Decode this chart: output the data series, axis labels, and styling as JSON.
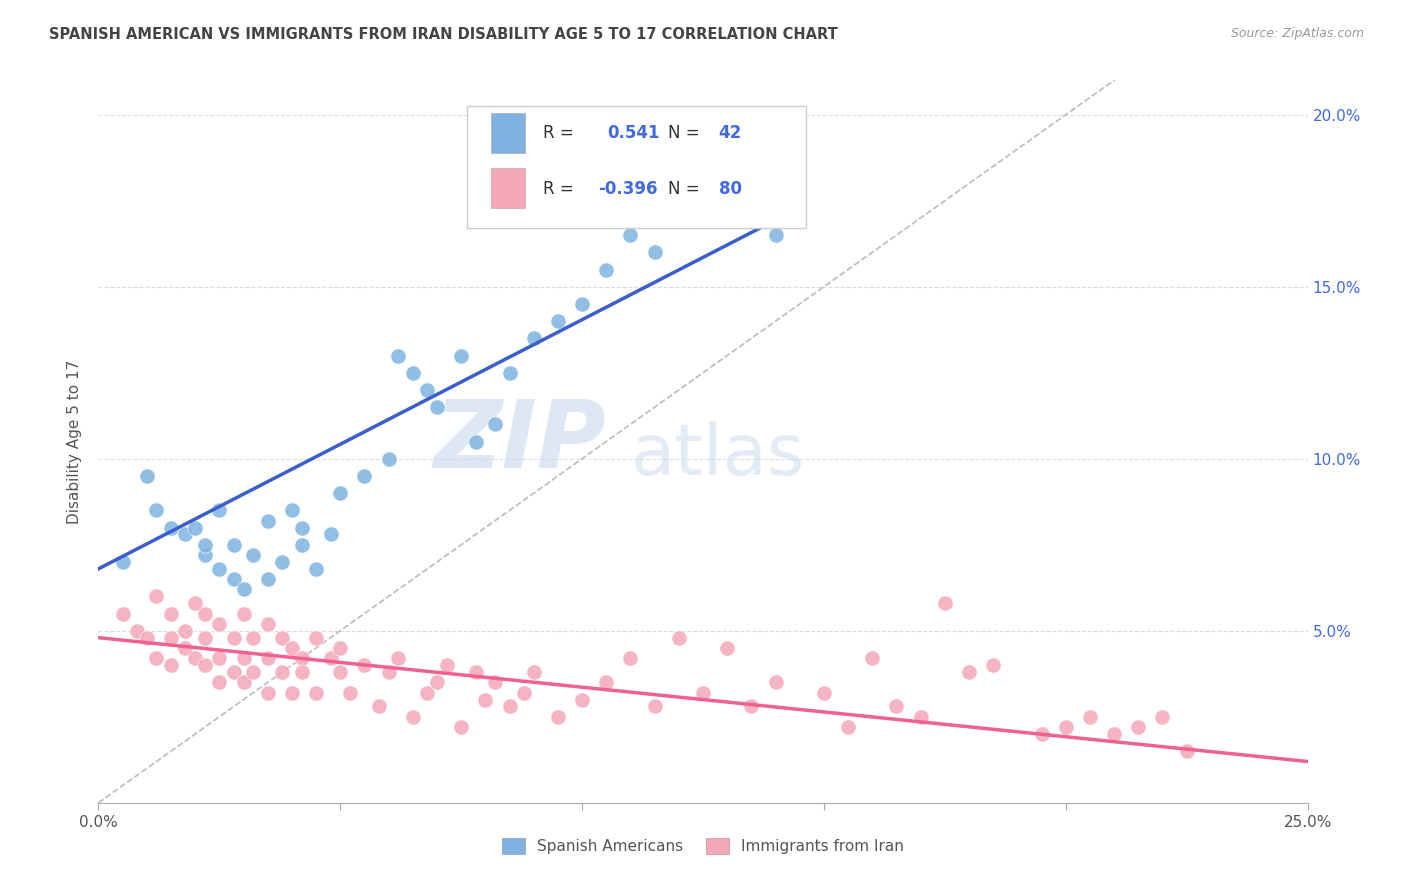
{
  "title": "SPANISH AMERICAN VS IMMIGRANTS FROM IRAN DISABILITY AGE 5 TO 17 CORRELATION CHART",
  "source": "Source: ZipAtlas.com",
  "ylabel": "Disability Age 5 to 17",
  "xlim": [
    0.0,
    0.25
  ],
  "ylim": [
    0.0,
    0.21
  ],
  "x_ticks": [
    0.0,
    0.05,
    0.1,
    0.15,
    0.2,
    0.25
  ],
  "x_tick_labels": [
    "0.0%",
    "",
    "",
    "",
    "",
    "25.0%"
  ],
  "y_ticks": [
    0.05,
    0.1,
    0.15,
    0.2
  ],
  "y_tick_labels": [
    "5.0%",
    "10.0%",
    "15.0%",
    "20.0%"
  ],
  "blue_R": 0.541,
  "blue_N": 42,
  "pink_R": -0.396,
  "pink_N": 80,
  "blue_color": "#7eb3e0",
  "pink_color": "#f4a7b9",
  "blue_line_color": "#3a5fcd",
  "pink_line_color": "#f06090",
  "dash_line_color": "#bbbbbb",
  "watermark_zip": "ZIP",
  "watermark_atlas": "atlas",
  "legend_labels": [
    "Spanish Americans",
    "Immigrants from Iran"
  ],
  "blue_scatter_x": [
    0.005,
    0.01,
    0.012,
    0.015,
    0.018,
    0.02,
    0.022,
    0.022,
    0.025,
    0.025,
    0.028,
    0.028,
    0.03,
    0.032,
    0.035,
    0.035,
    0.038,
    0.04,
    0.042,
    0.042,
    0.045,
    0.048,
    0.05,
    0.055,
    0.06,
    0.062,
    0.065,
    0.068,
    0.07,
    0.075,
    0.078,
    0.082,
    0.085,
    0.09,
    0.095,
    0.1,
    0.105,
    0.108,
    0.11,
    0.115,
    0.12,
    0.14
  ],
  "blue_scatter_y": [
    0.07,
    0.095,
    0.085,
    0.08,
    0.078,
    0.08,
    0.072,
    0.075,
    0.068,
    0.085,
    0.075,
    0.065,
    0.062,
    0.072,
    0.082,
    0.065,
    0.07,
    0.085,
    0.075,
    0.08,
    0.068,
    0.078,
    0.09,
    0.095,
    0.1,
    0.13,
    0.125,
    0.12,
    0.115,
    0.13,
    0.105,
    0.11,
    0.125,
    0.135,
    0.14,
    0.145,
    0.155,
    0.17,
    0.165,
    0.16,
    0.175,
    0.165
  ],
  "pink_scatter_x": [
    0.005,
    0.008,
    0.01,
    0.012,
    0.012,
    0.015,
    0.015,
    0.015,
    0.018,
    0.018,
    0.02,
    0.02,
    0.022,
    0.022,
    0.022,
    0.025,
    0.025,
    0.025,
    0.028,
    0.028,
    0.03,
    0.03,
    0.03,
    0.032,
    0.032,
    0.035,
    0.035,
    0.035,
    0.038,
    0.038,
    0.04,
    0.04,
    0.042,
    0.042,
    0.045,
    0.045,
    0.048,
    0.05,
    0.05,
    0.052,
    0.055,
    0.058,
    0.06,
    0.062,
    0.065,
    0.068,
    0.07,
    0.072,
    0.075,
    0.078,
    0.08,
    0.082,
    0.085,
    0.088,
    0.09,
    0.095,
    0.1,
    0.105,
    0.11,
    0.115,
    0.12,
    0.125,
    0.13,
    0.135,
    0.14,
    0.15,
    0.155,
    0.16,
    0.165,
    0.17,
    0.175,
    0.18,
    0.185,
    0.195,
    0.2,
    0.205,
    0.21,
    0.215,
    0.22,
    0.225
  ],
  "pink_scatter_y": [
    0.055,
    0.05,
    0.048,
    0.06,
    0.042,
    0.055,
    0.048,
    0.04,
    0.05,
    0.045,
    0.058,
    0.042,
    0.055,
    0.048,
    0.04,
    0.052,
    0.042,
    0.035,
    0.048,
    0.038,
    0.055,
    0.042,
    0.035,
    0.048,
    0.038,
    0.052,
    0.042,
    0.032,
    0.048,
    0.038,
    0.045,
    0.032,
    0.042,
    0.038,
    0.048,
    0.032,
    0.042,
    0.038,
    0.045,
    0.032,
    0.04,
    0.028,
    0.038,
    0.042,
    0.025,
    0.032,
    0.035,
    0.04,
    0.022,
    0.038,
    0.03,
    0.035,
    0.028,
    0.032,
    0.038,
    0.025,
    0.03,
    0.035,
    0.042,
    0.028,
    0.048,
    0.032,
    0.045,
    0.028,
    0.035,
    0.032,
    0.022,
    0.042,
    0.028,
    0.025,
    0.058,
    0.038,
    0.04,
    0.02,
    0.022,
    0.025,
    0.02,
    0.022,
    0.025,
    0.015
  ],
  "blue_line_x0": 0.0,
  "blue_line_y0": 0.068,
  "blue_line_x1": 0.145,
  "blue_line_y1": 0.173,
  "pink_line_x0": 0.0,
  "pink_line_y0": 0.048,
  "pink_line_x1": 0.25,
  "pink_line_y1": 0.012
}
